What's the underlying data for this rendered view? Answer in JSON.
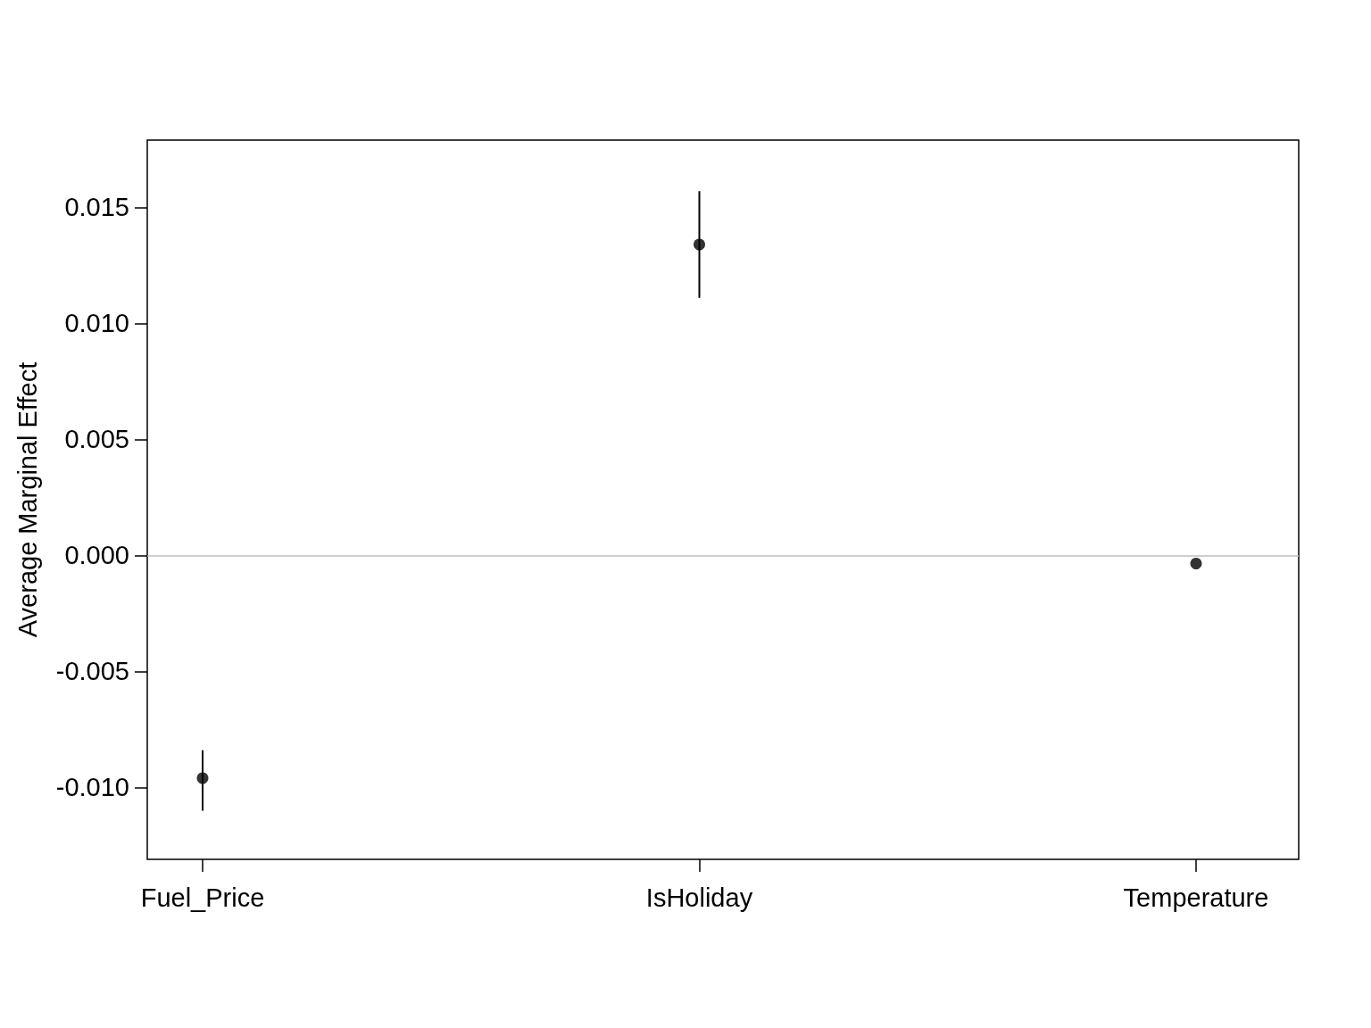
{
  "chart_data": {
    "type": "scatter",
    "ylabel": "Average Marginal Effect",
    "categories": [
      "Fuel_Price",
      "IsHoliday",
      "Temperature"
    ],
    "series": [
      {
        "color": "#000000",
        "values": [
          -0.0096,
          0.0134,
          -0.00035
        ],
        "errors": [
          [
            -0.011,
            -0.0084
          ],
          [
            0.0111,
            0.0157
          ],
          null
        ]
      }
    ],
    "ylim": [
      -0.0131,
      0.0179
    ],
    "yticks": [
      {
        "value": -0.01,
        "label": "-0.010"
      },
      {
        "value": -0.005,
        "label": "-0.005"
      },
      {
        "value": 0,
        "label": "0.000"
      },
      {
        "value": 0.005,
        "label": "0.005"
      },
      {
        "value": 0.01,
        "label": "0.010"
      },
      {
        "value": 0.015,
        "label": "0.015"
      }
    ],
    "ref_lines": [
      {
        "axis": "y",
        "value": 0,
        "color": "#bebebe"
      }
    ],
    "marker": "circle",
    "grid": false
  }
}
